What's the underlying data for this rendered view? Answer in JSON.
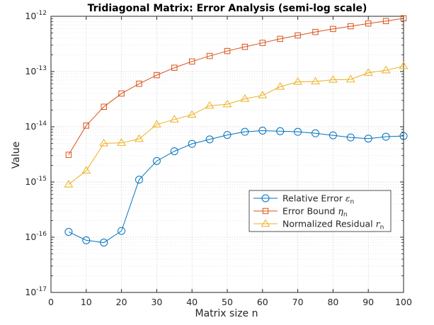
{
  "chart_data": {
    "type": "line",
    "title": "Tridiagonal Matrix: Error Analysis (semi-log scale)",
    "xlabel": "Matrix size n",
    "ylabel": "Value",
    "xlim": [
      0,
      100
    ],
    "ylim": [
      1e-17,
      1e-12
    ],
    "yscale": "log",
    "grid": true,
    "legend_position": "lower-right",
    "x_ticks": [
      0,
      10,
      20,
      30,
      40,
      50,
      60,
      70,
      80,
      90,
      100
    ],
    "x_tick_labels": [
      "0",
      "10",
      "20",
      "30",
      "40",
      "50",
      "60",
      "70",
      "80",
      "90",
      "100"
    ],
    "y_tick_exponents": [
      -17,
      -16,
      -15,
      -14,
      -13,
      -12
    ],
    "x": [
      5,
      10,
      15,
      20,
      25,
      30,
      35,
      40,
      45,
      50,
      55,
      60,
      65,
      70,
      75,
      80,
      85,
      90,
      95,
      100
    ],
    "series": [
      {
        "legend_words": [
          "Relative",
          "Error"
        ],
        "symbol": "ε",
        "subscript": "n",
        "color": "#0072BD",
        "marker": "circle",
        "values": [
          1.25e-16,
          8.8e-17,
          8e-17,
          1.3e-16,
          1.1e-15,
          2.4e-15,
          3.6e-15,
          4.9e-15,
          5.9e-15,
          7.1e-15,
          8.1e-15,
          8.5e-15,
          8.3e-15,
          8.1e-15,
          7.6e-15,
          7e-15,
          6.4e-15,
          6.1e-15,
          6.6e-15,
          6.8e-15
        ]
      },
      {
        "legend_words": [
          "Error",
          "Bound"
        ],
        "symbol": "η",
        "subscript": "n",
        "color": "#D95319",
        "marker": "square",
        "values": [
          3.1e-15,
          1.05e-14,
          2.3e-14,
          4e-14,
          6e-14,
          8.6e-14,
          1.17e-13,
          1.52e-13,
          1.91e-13,
          2.35e-13,
          2.8e-13,
          3.3e-13,
          3.9e-13,
          4.5e-13,
          5.2e-13,
          5.9e-13,
          6.6e-13,
          7.4e-13,
          8.2e-13,
          9.2e-13
        ]
      },
      {
        "legend_words": [
          "Normalized",
          "Residual"
        ],
        "symbol": "r",
        "subscript": "n",
        "color": "#EDB120",
        "marker": "triangle",
        "values": [
          9e-16,
          1.6e-15,
          5e-15,
          5.1e-15,
          6e-15,
          1.1e-14,
          1.35e-14,
          1.65e-14,
          2.4e-14,
          2.55e-14,
          3.2e-14,
          3.7e-14,
          5.3e-14,
          6.5e-14,
          6.6e-14,
          7.1e-14,
          7.2e-14,
          9.5e-14,
          1.05e-13,
          1.25e-13
        ]
      }
    ]
  }
}
